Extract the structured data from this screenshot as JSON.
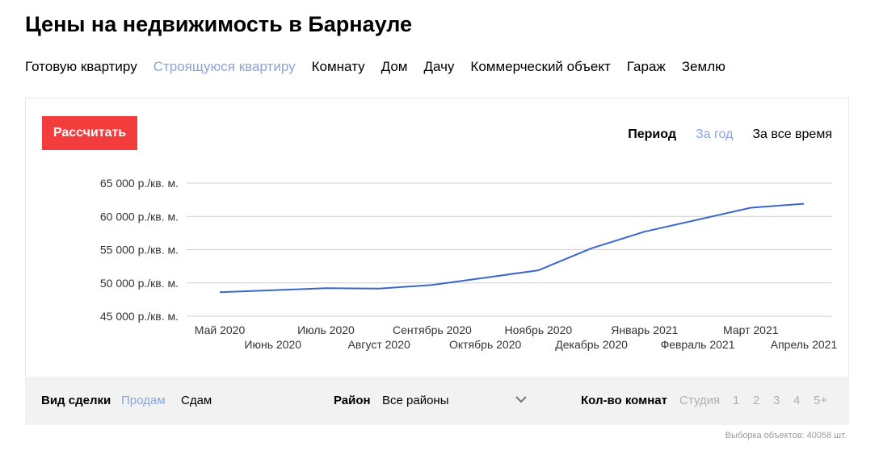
{
  "page": {
    "title": "Цены на недвижимость в Барнауле"
  },
  "property_tabs": [
    {
      "label": "Готовую квартиру",
      "active": false
    },
    {
      "label": "Строящуюся квартиру",
      "active": true
    },
    {
      "label": "Комнату",
      "active": false
    },
    {
      "label": "Дом",
      "active": false
    },
    {
      "label": "Дачу",
      "active": false
    },
    {
      "label": "Коммерческий объект",
      "active": false
    },
    {
      "label": "Гараж",
      "active": false
    },
    {
      "label": "Землю",
      "active": false
    }
  ],
  "calc_button": {
    "label": "Рассчитать"
  },
  "period": {
    "label": "Период",
    "options": [
      {
        "label": "За год",
        "active": true
      },
      {
        "label": "За все время",
        "active": false
      }
    ]
  },
  "chart_data": {
    "type": "line",
    "categories": [
      "Май 2020",
      "Июнь 2020",
      "Июль 2020",
      "Август 2020",
      "Сентябрь 2020",
      "Октябрь 2020",
      "Ноябрь 2020",
      "Декабрь 2020",
      "Январь 2021",
      "Февраль 2021",
      "Март 2021",
      "Апрель 2021"
    ],
    "series": [
      {
        "values": [
          48600,
          48900,
          49200,
          49150,
          49700,
          50800,
          51900,
          55200,
          57700,
          59500,
          61300,
          61900
        ]
      }
    ],
    "yticks": [
      45000,
      50000,
      55000,
      60000,
      65000
    ],
    "ytick_labels": [
      "45 000 р./кв. м.",
      "50 000 р./кв. м.",
      "55 000 р./кв. м.",
      "60 000 р./кв. м.",
      "65 000 р./кв. м."
    ],
    "ylim": [
      45000,
      65000
    ],
    "grid": true,
    "line_color": "#3a67c9"
  },
  "filters": {
    "deal_label": "Вид сделки",
    "deal_options": [
      {
        "label": "Продам",
        "active": true
      },
      {
        "label": "Сдам",
        "active": false
      }
    ],
    "district_label": "Район",
    "district_value": "Все районы",
    "rooms_label": "Кол-во комнат",
    "room_options": [
      "Студия",
      "1",
      "2",
      "3",
      "4",
      "5+"
    ]
  },
  "objects_count": "Выборка объектов: 40058 шт."
}
